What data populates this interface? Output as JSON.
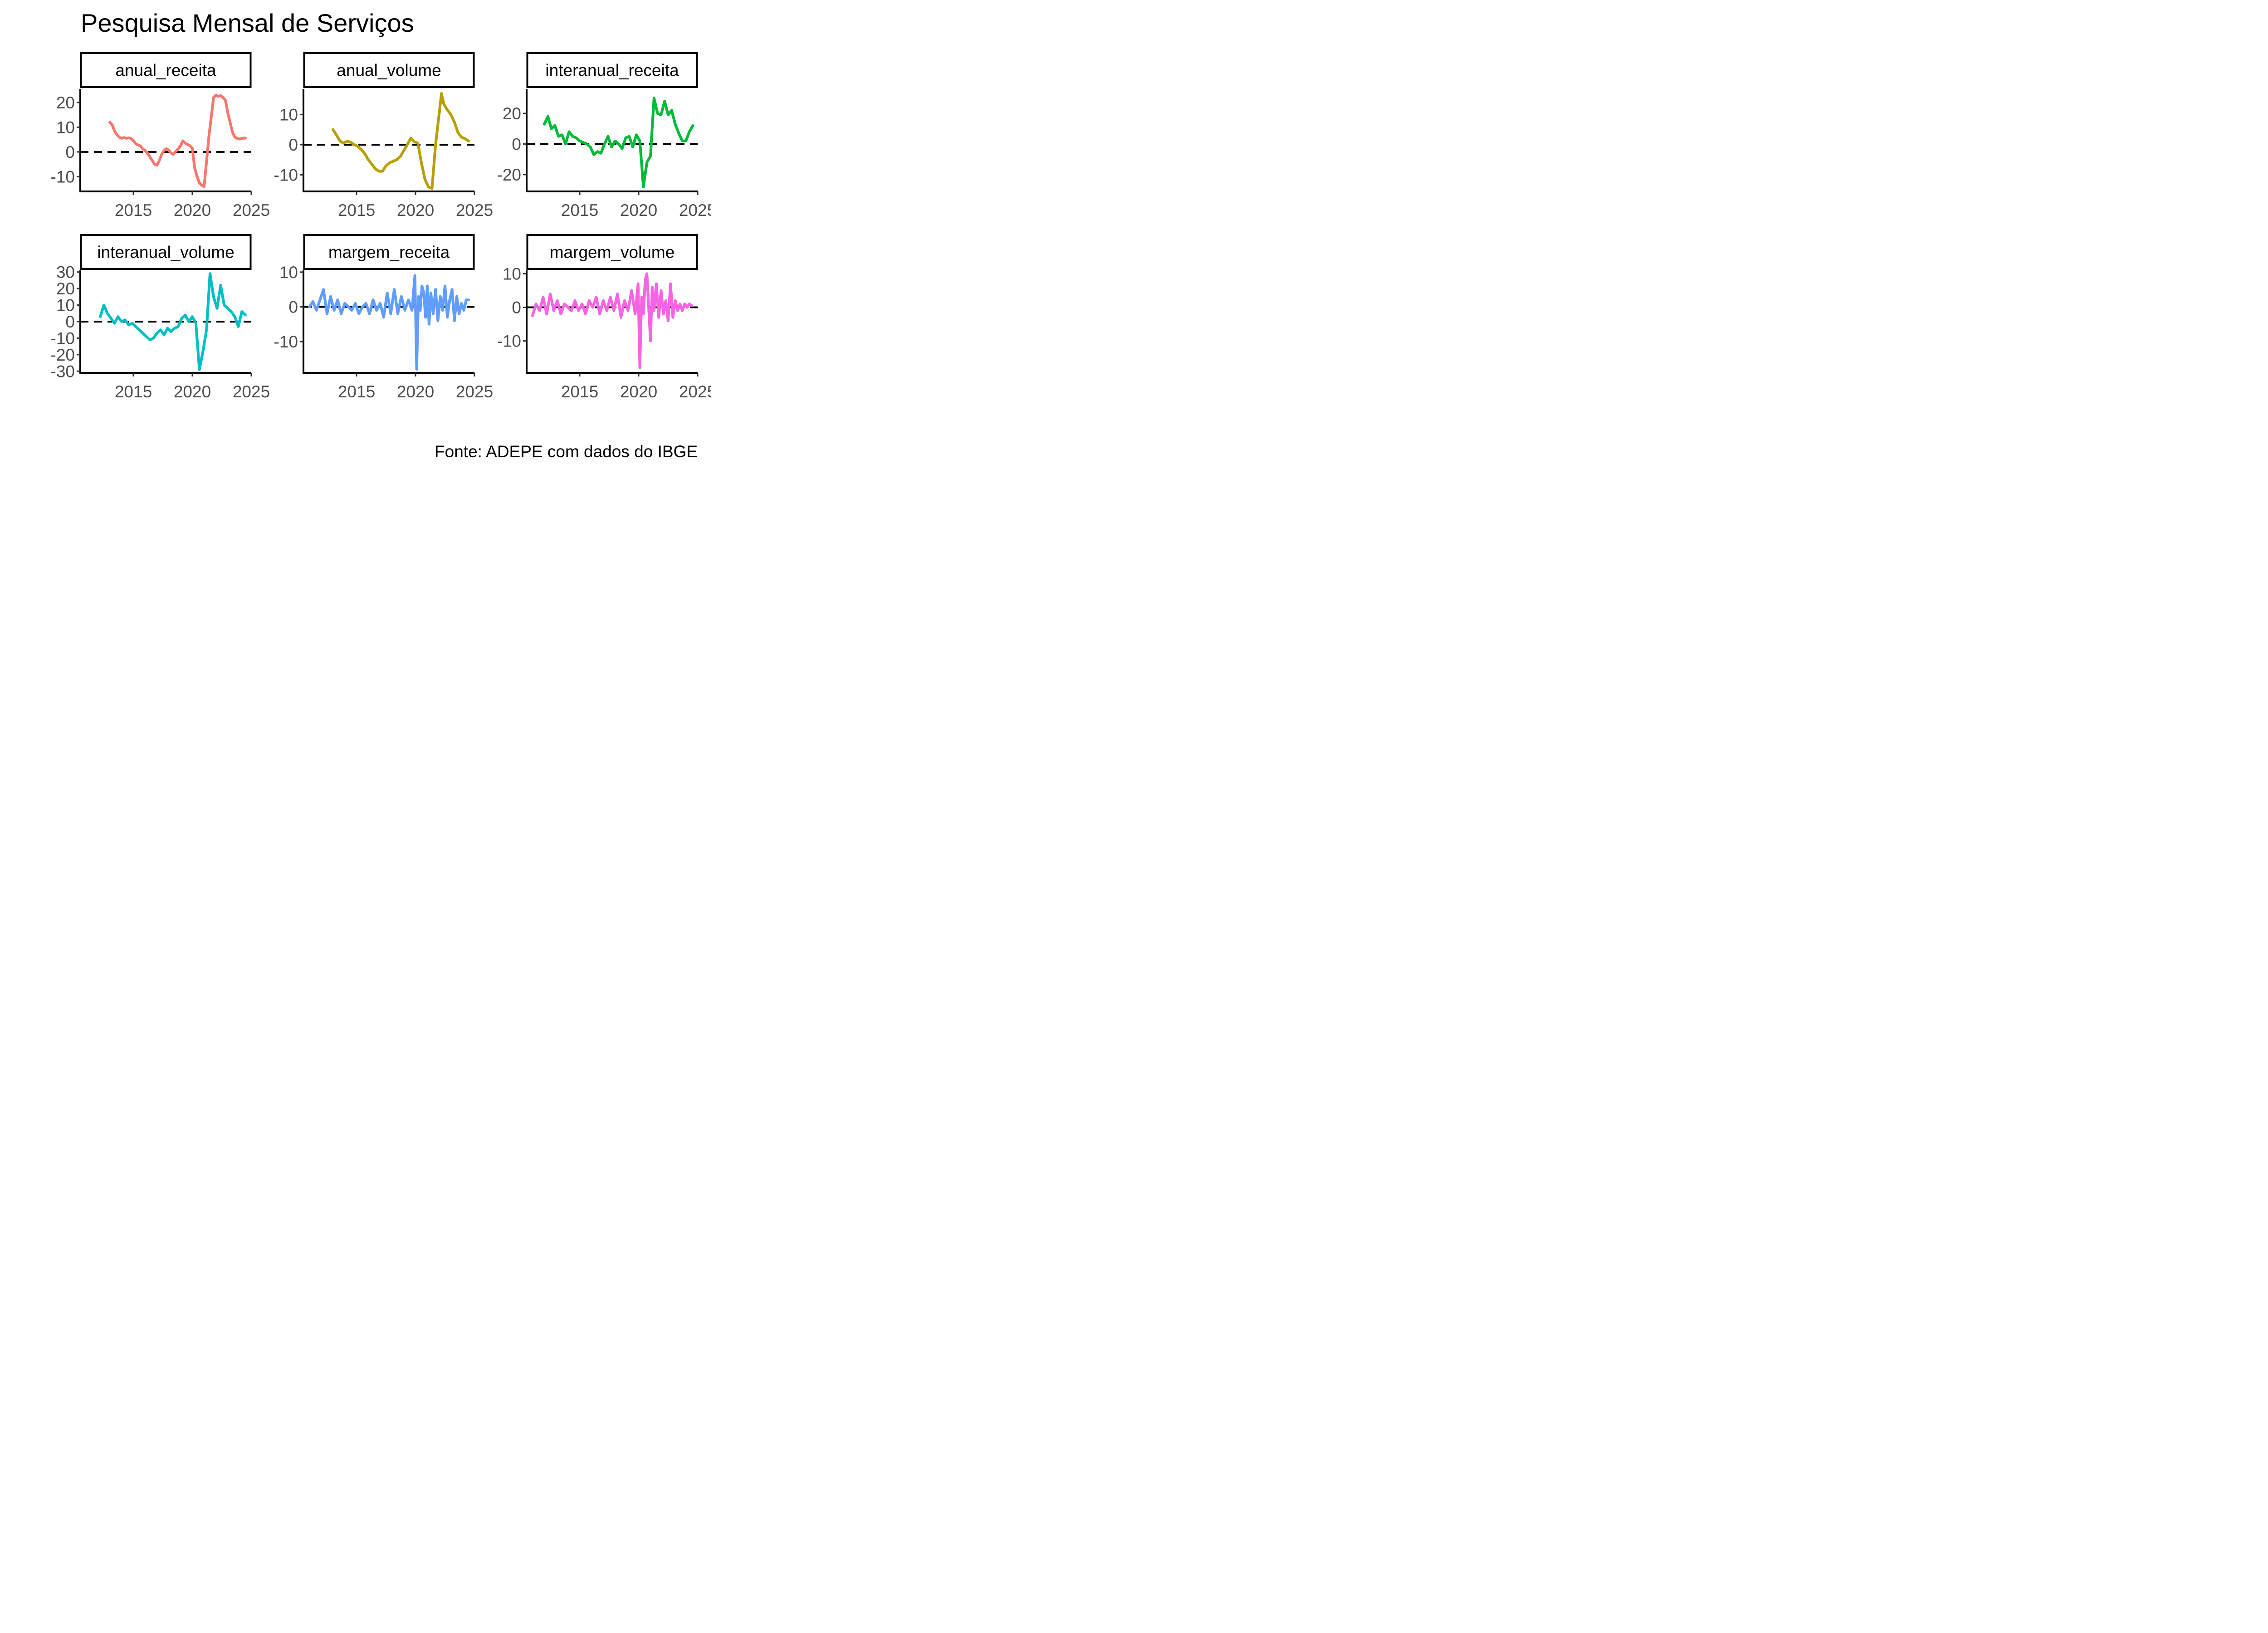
{
  "chart_data": {
    "type": "line",
    "title": "Pesquisa Mensal de Serviços",
    "caption": "Fonte: ADEPE com dados do IBGE",
    "reference_line": {
      "y": 0,
      "style": "dashed",
      "color": "#000000"
    },
    "grid": false,
    "xlim": [
      2010.5,
      2025
    ],
    "x_ticks": [
      2015,
      2020,
      2025
    ],
    "panels": [
      {
        "facet": "anual_receita",
        "color": "#F8766D",
        "ylim": [
          -16,
          25.5
        ],
        "y_ticks": [
          -10,
          0,
          10,
          20
        ],
        "x": [
          2013.0,
          2013.2,
          2013.4,
          2013.6,
          2013.8,
          2014.0,
          2014.2,
          2014.4,
          2014.6,
          2014.8,
          2015.0,
          2015.2,
          2015.4,
          2015.6,
          2015.8,
          2016.0,
          2016.2,
          2016.4,
          2016.6,
          2016.8,
          2017.0,
          2017.2,
          2017.4,
          2017.6,
          2017.8,
          2018.0,
          2018.2,
          2018.4,
          2018.6,
          2018.8,
          2019.0,
          2019.2,
          2019.4,
          2019.6,
          2019.8,
          2020.0,
          2020.2,
          2020.4,
          2020.6,
          2020.8,
          2021.0,
          2021.2,
          2021.4,
          2021.6,
          2021.8,
          2022.0,
          2022.2,
          2022.4,
          2022.6,
          2022.8,
          2023.0,
          2023.2,
          2023.4,
          2023.6,
          2023.8,
          2024.0,
          2024.2,
          2024.5
        ],
        "y": [
          12,
          11,
          8.5,
          7,
          6,
          5.5,
          5.8,
          5.5,
          5.7,
          5.4,
          4.6,
          3.3,
          2.8,
          2.4,
          1.2,
          0.5,
          -0.5,
          -2,
          -3.5,
          -5,
          -5.4,
          -3.5,
          -1,
          0.5,
          1.3,
          0.7,
          -0.5,
          -1,
          0.2,
          1.2,
          2.5,
          4.5,
          3.5,
          3,
          2.5,
          1.5,
          -6.5,
          -10,
          -12.5,
          -13.5,
          -14,
          -4,
          6,
          14,
          22,
          23,
          22.5,
          22.8,
          22,
          21,
          16,
          12,
          8,
          6,
          5.5,
          5.2,
          5.5,
          5.6
        ]
      },
      {
        "facet": "anual_volume",
        "color": "#B79F00",
        "ylim": [
          -15.5,
          18.5
        ],
        "y_ticks": [
          -10,
          0,
          10
        ],
        "x": [
          2013.0,
          2013.3,
          2013.6,
          2013.9,
          2014.2,
          2014.5,
          2014.8,
          2015.1,
          2015.4,
          2015.7,
          2016.0,
          2016.3,
          2016.6,
          2016.9,
          2017.2,
          2017.5,
          2017.8,
          2018.1,
          2018.4,
          2018.7,
          2019.0,
          2019.3,
          2019.6,
          2019.9,
          2020.2,
          2020.5,
          2020.8,
          2021.1,
          2021.4,
          2021.7,
          2022.0,
          2022.2,
          2022.4,
          2022.7,
          2023.0,
          2023.3,
          2023.6,
          2023.9,
          2024.2,
          2024.5
        ],
        "y": [
          5,
          3.2,
          1.2,
          0.5,
          1.2,
          0.8,
          0,
          -0.5,
          -1.6,
          -3,
          -5,
          -6.5,
          -8,
          -8.8,
          -8.8,
          -7,
          -6,
          -5.5,
          -5,
          -4,
          -2,
          0,
          2.2,
          1,
          0.5,
          -6,
          -11.5,
          -14,
          -14.5,
          0,
          10,
          17,
          13.5,
          11.5,
          10,
          7.5,
          4,
          2.5,
          2,
          1.2
        ]
      },
      {
        "facet": "interanual_receita",
        "color": "#00BA38",
        "ylim": [
          -31,
          36
        ],
        "y_ticks": [
          -20,
          0,
          20
        ],
        "x": [
          2012.0,
          2012.3,
          2012.6,
          2012.9,
          2013.2,
          2013.5,
          2013.8,
          2014.1,
          2014.4,
          2014.7,
          2015.0,
          2015.3,
          2015.6,
          2015.9,
          2016.2,
          2016.5,
          2016.8,
          2017.1,
          2017.4,
          2017.7,
          2018.0,
          2018.3,
          2018.6,
          2018.9,
          2019.2,
          2019.5,
          2019.8,
          2020.1,
          2020.4,
          2020.7,
          2021.0,
          2021.3,
          2021.6,
          2021.9,
          2022.2,
          2022.5,
          2022.8,
          2023.1,
          2023.4,
          2023.7,
          2024.0,
          2024.3,
          2024.6
        ],
        "y": [
          13,
          18,
          10,
          12,
          5,
          6,
          0,
          8,
          5,
          4,
          2,
          1,
          0,
          -2,
          -7,
          -5,
          -6,
          0,
          5,
          -2,
          2,
          0,
          -3,
          4,
          5,
          -2,
          6,
          2,
          -28,
          -12,
          -8,
          30,
          20,
          19,
          28,
          19,
          22,
          13,
          7,
          2,
          2,
          8,
          12
        ]
      },
      {
        "facet": "interanual_volume",
        "color": "#00BFC4",
        "ylim": [
          -31,
          31
        ],
        "y_ticks": [
          -30,
          -20,
          -10,
          0,
          10,
          20,
          30
        ],
        "x": [
          2012.2,
          2012.5,
          2012.8,
          2013.1,
          2013.4,
          2013.7,
          2014.0,
          2014.3,
          2014.6,
          2014.9,
          2015.2,
          2015.5,
          2015.8,
          2016.1,
          2016.4,
          2016.7,
          2017.0,
          2017.3,
          2017.6,
          2017.9,
          2018.2,
          2018.5,
          2018.8,
          2019.1,
          2019.4,
          2019.7,
          2020.0,
          2020.3,
          2020.6,
          2020.9,
          2021.2,
          2021.5,
          2021.8,
          2022.1,
          2022.4,
          2022.7,
          2023.0,
          2023.3,
          2023.6,
          2023.9,
          2024.2,
          2024.5
        ],
        "y": [
          3,
          10,
          5,
          2,
          -1,
          3,
          0,
          1,
          -2,
          -1,
          -3,
          -5,
          -7,
          -9,
          -11,
          -10,
          -7,
          -5,
          -8,
          -4,
          -6,
          -4,
          -3,
          2,
          4,
          0,
          3,
          -1,
          -29,
          -18,
          -5,
          29,
          15,
          8,
          22,
          10,
          8,
          6,
          3,
          -3,
          6,
          4
        ]
      },
      {
        "facet": "margem_receita",
        "color": "#619CFF",
        "ylim": [
          -19,
          10.5
        ],
        "y_ticks": [
          -10,
          0,
          10
        ],
        "x": [
          2011.0,
          2011.3,
          2011.6,
          2011.9,
          2012.2,
          2012.5,
          2012.8,
          2013.1,
          2013.4,
          2013.7,
          2014.0,
          2014.3,
          2014.6,
          2014.9,
          2015.2,
          2015.5,
          2015.8,
          2016.1,
          2016.4,
          2016.7,
          2017.0,
          2017.3,
          2017.6,
          2017.9,
          2018.2,
          2018.5,
          2018.8,
          2019.1,
          2019.4,
          2019.7,
          2019.95,
          2020.1,
          2020.25,
          2020.4,
          2020.55,
          2020.7,
          2020.85,
          2021.0,
          2021.15,
          2021.3,
          2021.5,
          2021.7,
          2021.9,
          2022.1,
          2022.3,
          2022.5,
          2022.7,
          2022.9,
          2023.1,
          2023.3,
          2023.5,
          2023.7,
          2023.9,
          2024.1,
          2024.3,
          2024.5
        ],
        "y": [
          0,
          1.5,
          -1,
          2,
          5,
          -2,
          3,
          -1,
          2,
          -2,
          1,
          0,
          -1,
          1,
          -2,
          0,
          1,
          -2,
          2,
          -1,
          1,
          -3,
          4,
          -2,
          5,
          -2,
          3,
          -1,
          2,
          -1,
          9,
          -18,
          3,
          -1,
          6,
          4,
          -3,
          6,
          -5,
          4,
          -2,
          5,
          -4,
          3,
          -1,
          6,
          -3,
          2,
          5,
          -4,
          3,
          -2,
          1,
          -1,
          2,
          2
        ]
      },
      {
        "facet": "margem_volume",
        "color": "#F564E3",
        "ylim": [
          -19.5,
          11
        ],
        "y_ticks": [
          -10,
          0,
          10
        ],
        "x": [
          2011.0,
          2011.3,
          2011.6,
          2011.9,
          2012.2,
          2012.5,
          2012.8,
          2013.1,
          2013.4,
          2013.7,
          2014.0,
          2014.3,
          2014.6,
          2014.9,
          2015.2,
          2015.5,
          2015.8,
          2016.1,
          2016.4,
          2016.7,
          2017.0,
          2017.3,
          2017.6,
          2017.9,
          2018.2,
          2018.5,
          2018.8,
          2019.1,
          2019.4,
          2019.7,
          2019.95,
          2020.1,
          2020.25,
          2020.4,
          2020.55,
          2020.7,
          2020.85,
          2021.0,
          2021.15,
          2021.3,
          2021.5,
          2021.7,
          2021.9,
          2022.1,
          2022.3,
          2022.5,
          2022.7,
          2022.9,
          2023.1,
          2023.3,
          2023.5,
          2023.7,
          2023.9,
          2024.1,
          2024.3,
          2024.5
        ],
        "y": [
          -2.5,
          1,
          -1,
          3,
          -2,
          4,
          -1,
          2,
          -2,
          1,
          0,
          -1,
          2,
          -1,
          1,
          -2,
          2,
          0,
          3,
          -2,
          2,
          -1,
          3,
          -1,
          4,
          -3,
          2,
          -1,
          5,
          -2,
          7,
          -18,
          3,
          -2,
          8,
          10,
          0,
          -10,
          6,
          -1,
          7,
          -3,
          5,
          -2,
          2,
          -4,
          7,
          -3,
          2,
          -1,
          1,
          -1,
          1,
          0,
          1,
          0.5
        ]
      }
    ]
  }
}
